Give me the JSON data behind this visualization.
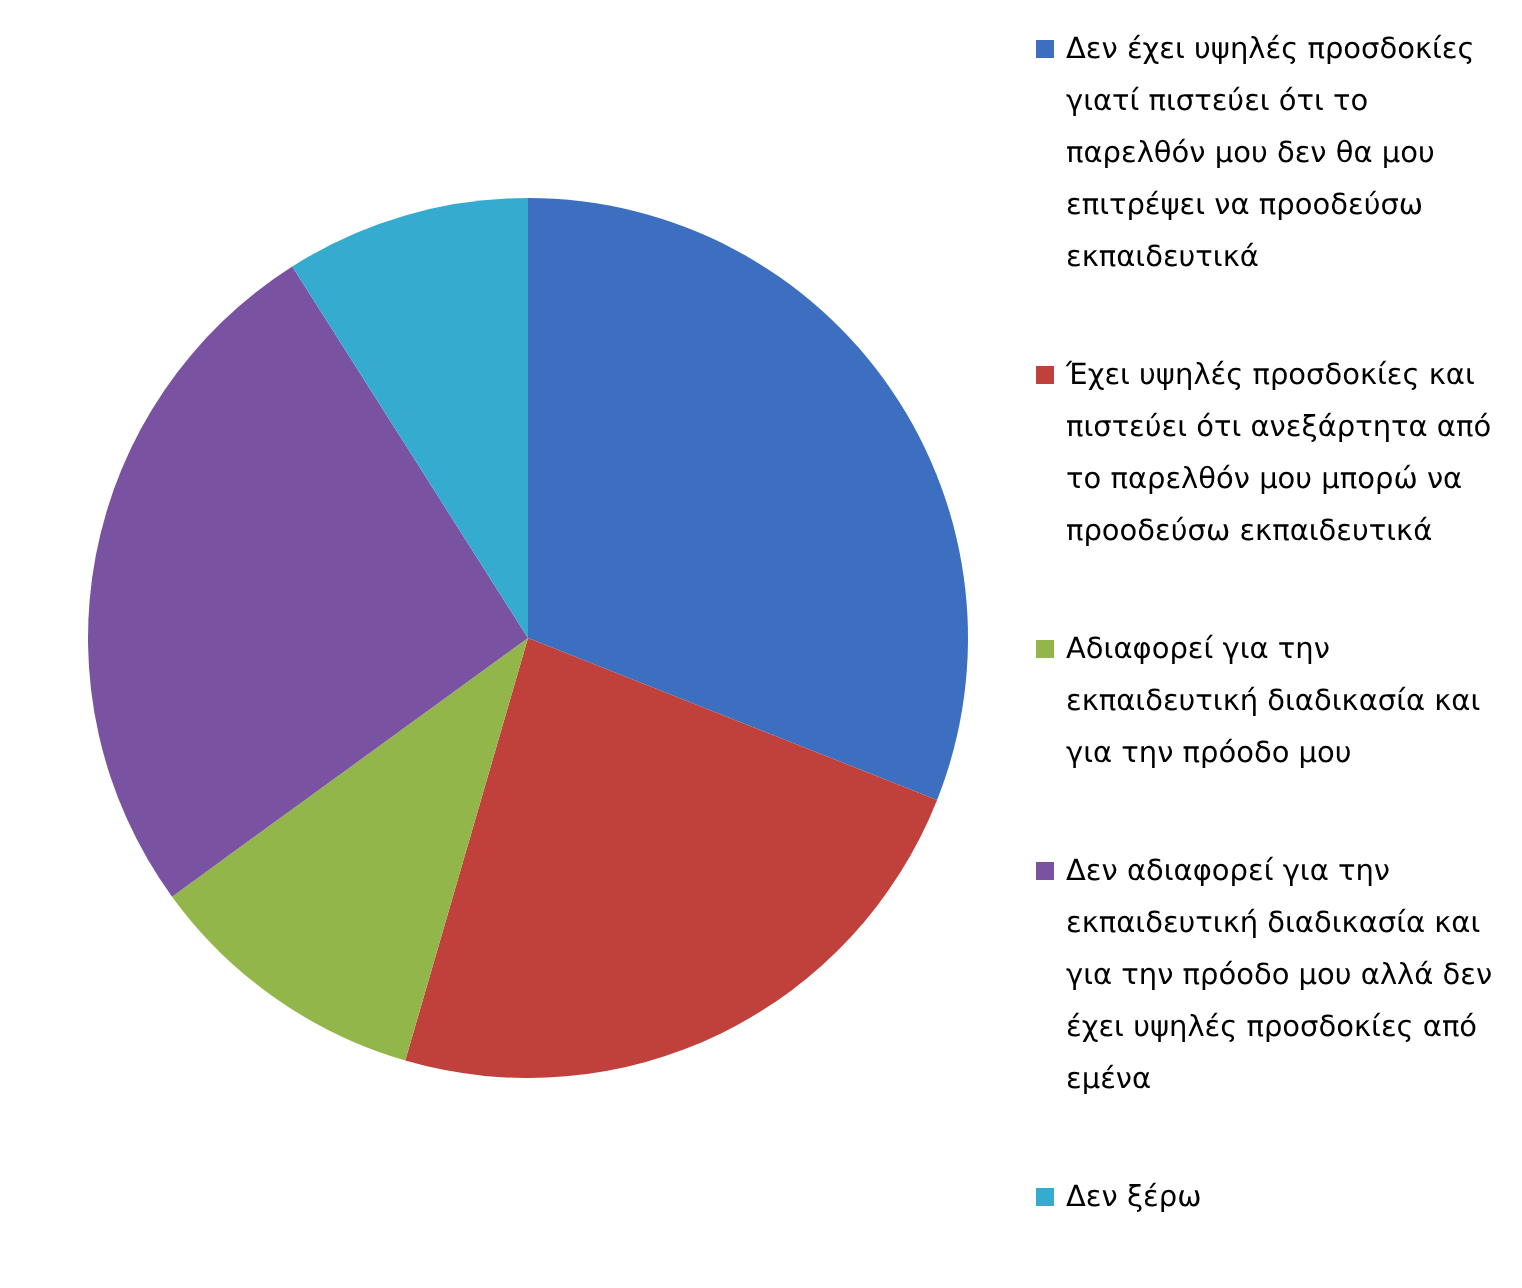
{
  "chart_data": {
    "type": "pie",
    "categories": [
      "Δεν έχει υψηλές προσδοκίες γιατί πιστεύει ότι το παρελθόν μου δεν θα μου επιτρέψει να προοδεύσω εκπαιδευτικά",
      "Έχει υψηλές προσδοκίες και πιστεύει ότι ανεξάρτητα από το παρελθόν μου μπορώ να προοδεύσω εκπαιδευτικά",
      "Αδιαφορεί για την εκπαιδευτική διαδικασία και για την πρόοδο μου",
      "Δεν αδιαφορεί για την εκπαιδευτική διαδικασία και για την πρόοδο μου αλλά δεν έχει υψηλές προσδοκίες από εμένα",
      "Δεν ξέρω"
    ],
    "values": [
      31,
      23.5,
      10.5,
      26,
      9
    ],
    "colors": [
      "#3d6fc0",
      "#c0403b",
      "#93b64a",
      "#7953a1",
      "#36abd0"
    ],
    "legend": "right"
  }
}
